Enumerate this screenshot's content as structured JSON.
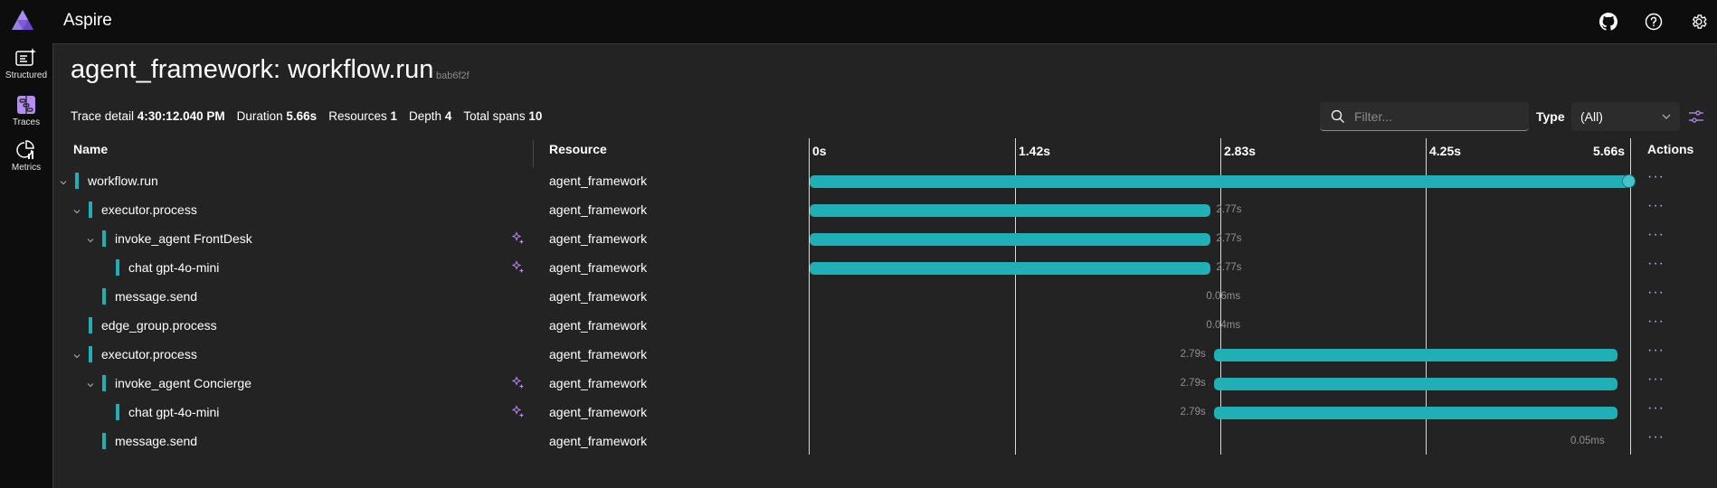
{
  "header": {
    "app_title": "Aspire",
    "icons": [
      "github-icon",
      "help-icon",
      "settings-icon"
    ]
  },
  "sidebar": {
    "items": [
      {
        "label": "Structured",
        "icon": "structured-logs-icon",
        "active": false
      },
      {
        "label": "Traces",
        "icon": "traces-icon",
        "active": true
      },
      {
        "label": "Metrics",
        "icon": "metrics-icon",
        "active": false
      }
    ]
  },
  "page": {
    "title": "agent_framework: workflow.run",
    "trace_id": "bab6f2f",
    "summary": {
      "trace_detail_label": "Trace detail",
      "trace_detail_value": "4:30:12.040 PM",
      "duration_label": "Duration",
      "duration_value": "5.66s",
      "resources_label": "Resources",
      "resources_value": "1",
      "depth_label": "Depth",
      "depth_value": "4",
      "total_spans_label": "Total spans",
      "total_spans_value": "10"
    }
  },
  "toolbar": {
    "filter_placeholder": "Filter...",
    "filter_value": "",
    "type_label": "Type",
    "type_value": "(All)"
  },
  "table": {
    "headers": {
      "name": "Name",
      "resource": "Resource",
      "actions": "Actions"
    },
    "ticks": [
      "0s",
      "1.42s",
      "2.83s",
      "4.25s",
      "5.66s"
    ],
    "rows": [
      {
        "name": "workflow.run",
        "depth": 0,
        "expandable": true,
        "ai": false,
        "resource": "agent_framework",
        "start": 0.0,
        "duration_s": 5.66,
        "duration_label": "",
        "label_side": "none",
        "actions": "···"
      },
      {
        "name": "executor.process",
        "depth": 1,
        "expandable": true,
        "ai": false,
        "resource": "agent_framework",
        "start": 0.0,
        "duration_s": 2.77,
        "duration_label": "2.77s",
        "label_side": "right",
        "actions": "···"
      },
      {
        "name": "invoke_agent FrontDesk",
        "depth": 2,
        "expandable": true,
        "ai": true,
        "resource": "agent_framework",
        "start": 0.0,
        "duration_s": 2.77,
        "duration_label": "2.77s",
        "label_side": "right",
        "actions": "···"
      },
      {
        "name": "chat gpt-4o-mini",
        "depth": 3,
        "expandable": false,
        "ai": true,
        "resource": "agent_framework",
        "start": 0.0,
        "duration_s": 2.77,
        "duration_label": "2.77s",
        "label_side": "right",
        "actions": "···"
      },
      {
        "name": "message.send",
        "depth": 2,
        "expandable": false,
        "ai": false,
        "resource": "agent_framework",
        "start": 2.77,
        "duration_s": 0,
        "duration_label": "0.06ms",
        "label_side": "right",
        "actions": "···"
      },
      {
        "name": "edge_group.process",
        "depth": 1,
        "expandable": false,
        "ai": false,
        "resource": "agent_framework",
        "start": 2.77,
        "duration_s": 0,
        "duration_label": "0.04ms",
        "label_side": "right",
        "actions": "···"
      },
      {
        "name": "executor.process",
        "depth": 1,
        "expandable": true,
        "ai": false,
        "resource": "agent_framework",
        "start": 2.79,
        "duration_s": 2.79,
        "duration_label": "2.79s",
        "label_side": "left",
        "actions": "···"
      },
      {
        "name": "invoke_agent Concierge",
        "depth": 2,
        "expandable": true,
        "ai": true,
        "resource": "agent_framework",
        "start": 2.79,
        "duration_s": 2.79,
        "duration_label": "2.79s",
        "label_side": "left",
        "actions": "···"
      },
      {
        "name": "chat gpt-4o-mini",
        "depth": 3,
        "expandable": false,
        "ai": true,
        "resource": "agent_framework",
        "start": 2.79,
        "duration_s": 2.79,
        "duration_label": "2.79s",
        "label_side": "left",
        "actions": "···"
      },
      {
        "name": "message.send",
        "depth": 2,
        "expandable": false,
        "ai": false,
        "resource": "agent_framework",
        "start": 5.66,
        "duration_s": 0,
        "duration_label": "0.05ms",
        "label_side": "left",
        "actions": "···"
      }
    ]
  },
  "colors": {
    "span_bar": "#1fb0b6",
    "accent": "#c7a6f0",
    "background": "#232323"
  }
}
